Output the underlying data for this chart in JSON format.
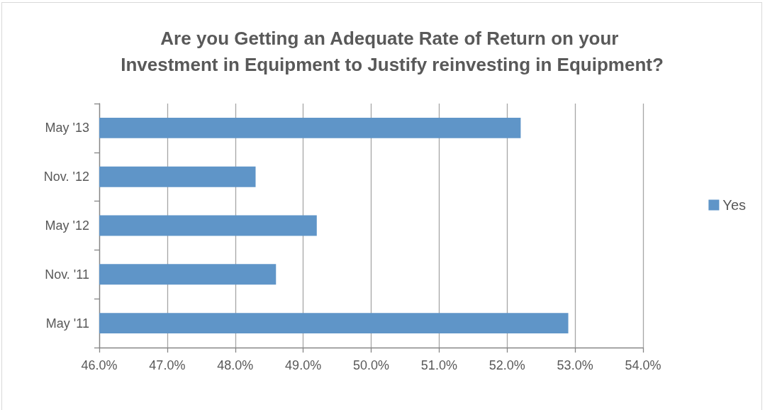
{
  "chart_data": {
    "type": "bar",
    "orientation": "horizontal",
    "title": "Are you Getting an Adequate Rate of Return on your Investment in Equipment to Justify reinvesting in Equipment?",
    "categories": [
      "May '13",
      "Nov. '12",
      "May '12",
      "Nov. '11",
      "May '11"
    ],
    "series": [
      {
        "name": "Yes",
        "color": "#5f95c8",
        "values": [
          52.2,
          48.3,
          49.2,
          48.6,
          52.9
        ]
      }
    ],
    "xlim": [
      46,
      54
    ],
    "xticks": [
      {
        "value": 46,
        "label": "46.0%"
      },
      {
        "value": 47,
        "label": "47.0%"
      },
      {
        "value": 48,
        "label": "48.0%"
      },
      {
        "value": 49,
        "label": "49.0%"
      },
      {
        "value": 50,
        "label": "50.0%"
      },
      {
        "value": 51,
        "label": "51.0%"
      },
      {
        "value": 52,
        "label": "52.0%"
      },
      {
        "value": 53,
        "label": "53.0%"
      },
      {
        "value": 54,
        "label": "54.0%"
      }
    ],
    "grid": "x",
    "legend": "right"
  }
}
